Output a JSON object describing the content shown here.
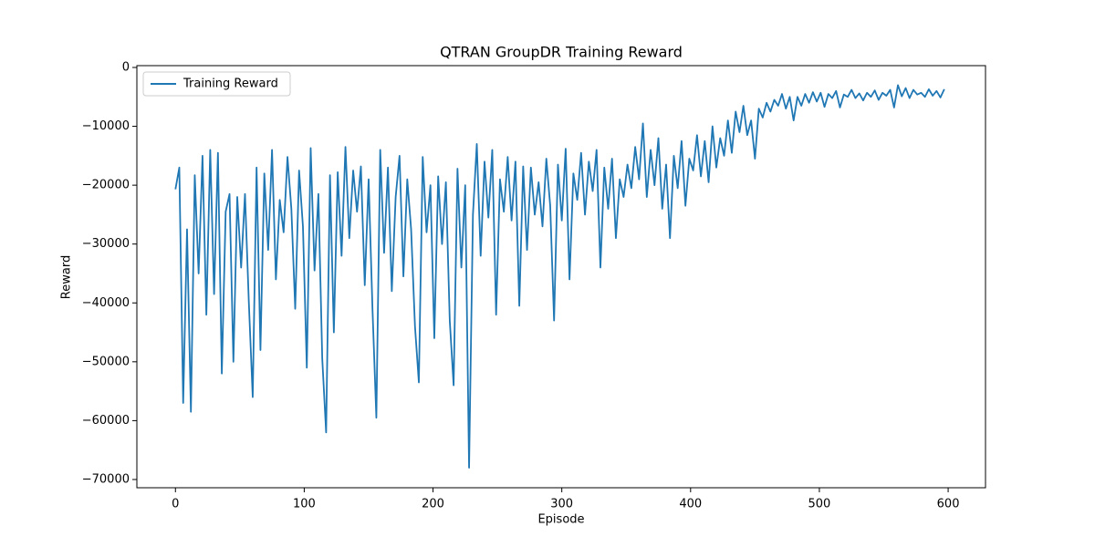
{
  "chart_data": {
    "type": "line",
    "title": "QTRAN GroupDR Training Reward",
    "x_label": "Episode",
    "y_label": "Reward",
    "x": [
      0,
      3,
      6,
      9,
      12,
      15,
      18,
      21,
      24,
      27,
      30,
      33,
      36,
      39,
      42,
      45,
      48,
      51,
      54,
      57,
      60,
      63,
      66,
      69,
      72,
      75,
      78,
      81,
      84,
      87,
      90,
      93,
      96,
      99,
      102,
      105,
      108,
      111,
      114,
      117,
      120,
      123,
      126,
      129,
      132,
      135,
      138,
      141,
      144,
      147,
      150,
      153,
      156,
      159,
      162,
      165,
      168,
      171,
      174,
      177,
      180,
      183,
      186,
      189,
      192,
      195,
      198,
      201,
      204,
      207,
      210,
      213,
      216,
      219,
      222,
      225,
      228,
      231,
      234,
      237,
      240,
      243,
      246,
      249,
      252,
      255,
      258,
      261,
      264,
      267,
      270,
      273,
      276,
      279,
      282,
      285,
      288,
      291,
      294,
      297,
      300,
      303,
      306,
      309,
      312,
      315,
      318,
      321,
      324,
      327,
      330,
      333,
      336,
      339,
      342,
      345,
      348,
      351,
      354,
      357,
      360,
      363,
      366,
      369,
      372,
      375,
      378,
      381,
      384,
      387,
      390,
      393,
      396,
      399,
      402,
      405,
      408,
      411,
      414,
      417,
      420,
      423,
      426,
      429,
      432,
      435,
      438,
      441,
      444,
      447,
      450,
      453,
      456,
      459,
      462,
      465,
      468,
      471,
      474,
      477,
      480,
      483,
      486,
      489,
      492,
      495,
      498,
      501,
      504,
      507,
      510,
      513,
      516,
      519,
      522,
      525,
      528,
      531,
      534,
      537,
      540,
      543,
      546,
      549,
      552,
      555,
      558,
      561,
      564,
      567,
      570,
      573,
      576,
      579,
      582,
      585,
      588,
      591,
      594,
      597
    ],
    "series": [
      {
        "name": "Training Reward",
        "color": "#1f77b4",
        "values": [
          -20700,
          -17000,
          -57000,
          -27500,
          -58500,
          -18300,
          -35000,
          -15000,
          -42000,
          -14000,
          -38500,
          -14500,
          -52000,
          -24500,
          -21500,
          -50000,
          -22000,
          -34000,
          -21500,
          -40000,
          -56000,
          -17000,
          -48000,
          -18000,
          -31000,
          -14000,
          -36000,
          -22500,
          -28000,
          -15200,
          -24000,
          -41000,
          -17500,
          -27000,
          -51000,
          -13700,
          -34500,
          -21500,
          -49500,
          -62000,
          -18300,
          -45000,
          -17800,
          -32000,
          -13500,
          -29000,
          -17500,
          -24500,
          -16800,
          -37000,
          -19000,
          -41000,
          -59500,
          -14000,
          -31500,
          -17000,
          -38000,
          -22000,
          -15000,
          -35500,
          -19000,
          -27500,
          -44000,
          -53500,
          -15200,
          -28000,
          -20000,
          -46000,
          -18500,
          -30000,
          -19500,
          -43000,
          -54000,
          -17200,
          -34000,
          -20000,
          -68000,
          -25000,
          -13000,
          -32000,
          -16000,
          -25500,
          -14000,
          -42000,
          -19000,
          -24500,
          -15200,
          -26000,
          -16000,
          -40500,
          -16800,
          -31000,
          -17000,
          -25000,
          -19500,
          -27000,
          -15500,
          -23500,
          -43000,
          -16500,
          -26000,
          -13800,
          -36000,
          -18000,
          -22500,
          -14500,
          -25000,
          -16000,
          -21000,
          -14000,
          -34000,
          -17000,
          -24000,
          -15500,
          -29000,
          -19000,
          -22000,
          -16500,
          -20500,
          -13500,
          -19000,
          -9500,
          -22000,
          -14000,
          -20000,
          -12000,
          -24000,
          -16500,
          -29000,
          -15000,
          -20500,
          -12500,
          -23500,
          -15500,
          -17500,
          -11500,
          -18500,
          -12500,
          -19500,
          -10000,
          -17000,
          -12000,
          -15000,
          -9000,
          -14500,
          -7500,
          -11000,
          -6500,
          -11500,
          -9000,
          -15500,
          -7000,
          -8500,
          -6000,
          -7500,
          -5500,
          -6500,
          -4500,
          -7000,
          -5000,
          -9000,
          -5000,
          -6500,
          -4500,
          -6000,
          -4200,
          -5800,
          -4300,
          -6700,
          -4500,
          -5200,
          -4000,
          -6800,
          -4600,
          -5000,
          -3800,
          -5200,
          -4400,
          -5600,
          -4300,
          -5000,
          -3900,
          -5500,
          -4300,
          -4800,
          -3800,
          -6800,
          -3000,
          -4900,
          -3500,
          -5200,
          -3800,
          -4600,
          -4300,
          -5000,
          -3700,
          -4800,
          -4000,
          -5100,
          -3700
        ]
      }
    ],
    "xlim": [
      -29.95,
      629
    ],
    "xticks": [
      0,
      100,
      200,
      300,
      400,
      500,
      600
    ],
    "ylim": [
      -71400,
      310
    ],
    "yticks": [
      {
        "value": -70000,
        "label": "−70000"
      },
      {
        "value": -60000,
        "label": "−60000"
      },
      {
        "value": -50000,
        "label": "−50000"
      },
      {
        "value": -40000,
        "label": "−40000"
      },
      {
        "value": -30000,
        "label": "−30000"
      },
      {
        "value": -20000,
        "label": "−20000"
      },
      {
        "value": -10000,
        "label": "−10000"
      },
      0
    ],
    "grid": false,
    "legend": "upper left"
  }
}
